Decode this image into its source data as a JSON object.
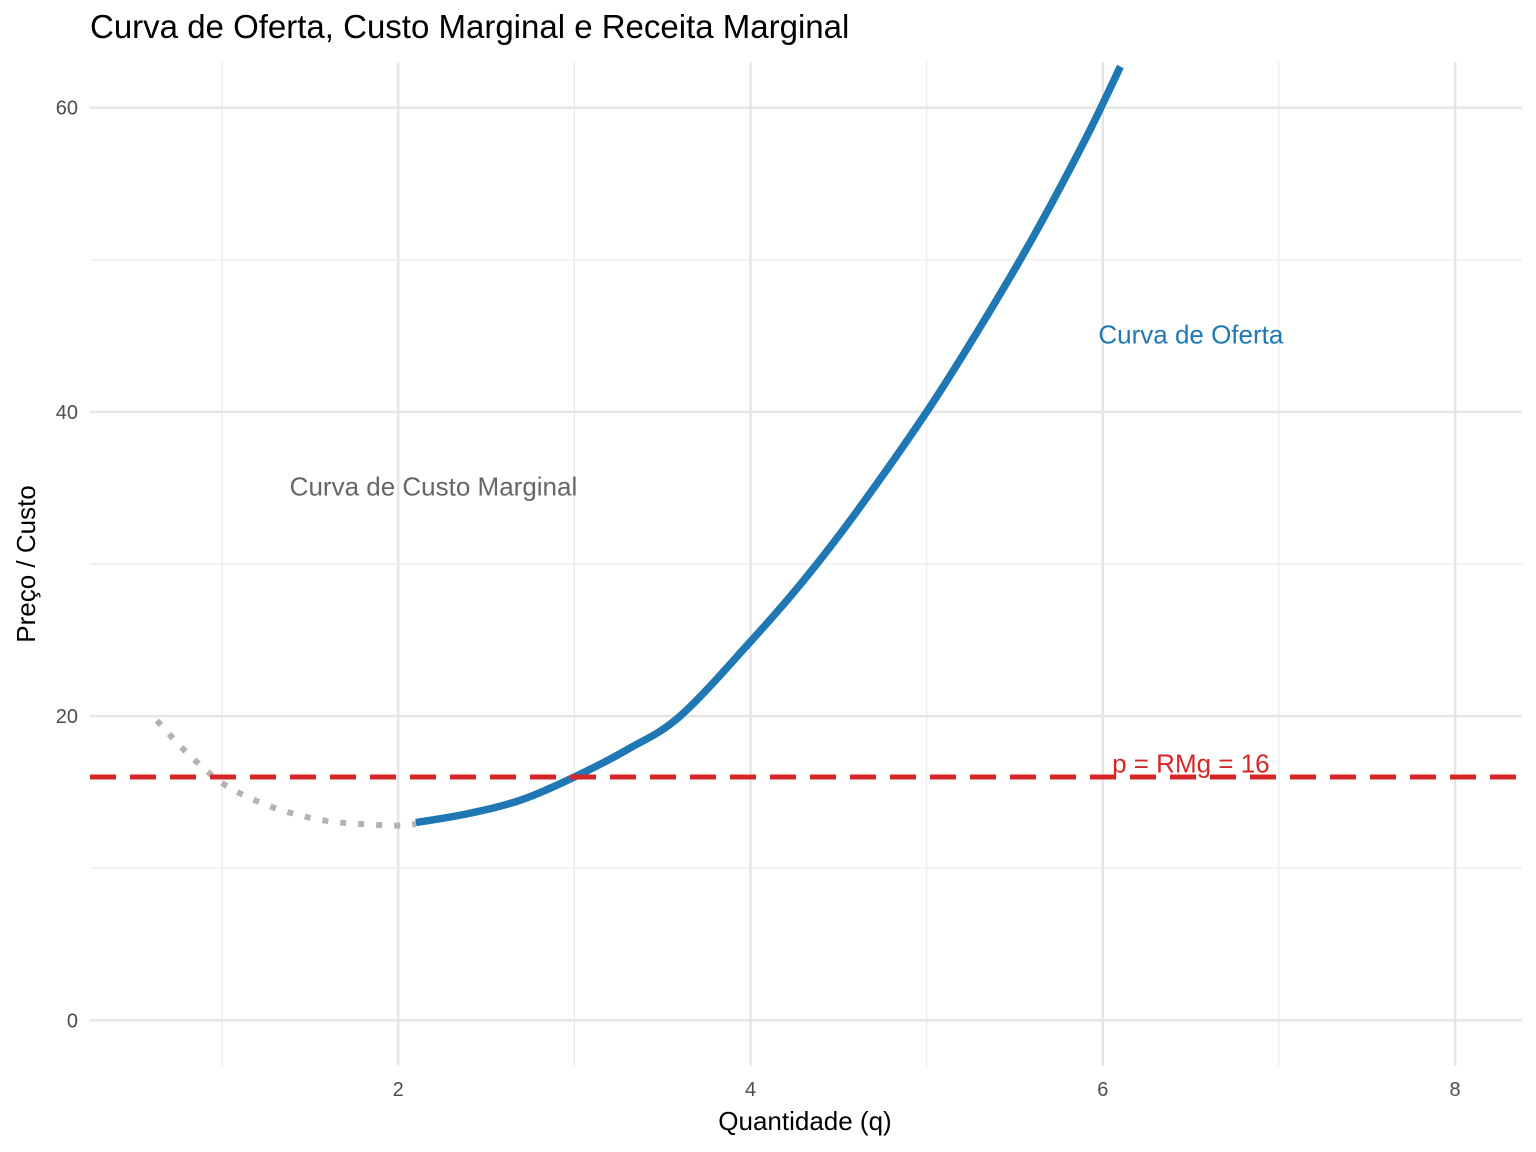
{
  "chart_data": {
    "type": "line",
    "title": "Curva de Oferta, Custo Marginal e Receita Marginal",
    "xlabel": "Quantidade (q)",
    "ylabel": "Preço / Custo",
    "xlim": [
      0.25,
      8.38
    ],
    "ylim": [
      -3.0,
      63.0
    ],
    "x_major_ticks": [
      2,
      4,
      6,
      8
    ],
    "x_minor_gridlines": [
      1,
      3,
      5,
      7
    ],
    "y_major_ticks": [
      0,
      20,
      40,
      60
    ],
    "y_minor_gridlines": [
      10,
      30,
      50
    ],
    "grid": true,
    "series": [
      {
        "key": "custo_marginal",
        "color": "#b3b3b3",
        "style": "dotted",
        "x": [
          0.63,
          0.8,
          1.0,
          1.2,
          1.4,
          1.6,
          1.8,
          2.0,
          2.1
        ],
        "y": [
          19.7,
          17.6,
          15.6,
          14.4,
          13.6,
          13.1,
          12.9,
          12.8,
          12.9
        ]
      },
      {
        "key": "oferta",
        "color": "#1f78b4",
        "style": "solid",
        "x": [
          2.1,
          2.4,
          2.7,
          3.0,
          3.3,
          3.6,
          4.0,
          4.3,
          4.6,
          5.0,
          5.3,
          5.6,
          5.9,
          6.1
        ],
        "y": [
          13.0,
          13.6,
          14.5,
          16.0,
          17.8,
          20.0,
          24.9,
          28.9,
          33.4,
          40.0,
          45.5,
          51.4,
          57.9,
          62.7
        ]
      },
      {
        "key": "receita_marginal",
        "color": "#d62728",
        "style": "dashed",
        "x": [
          0.25,
          8.38
        ],
        "y": [
          16,
          16
        ]
      }
    ],
    "annotations": [
      {
        "text": "Curva de Oferta",
        "x": 6.5,
        "y": 45.1,
        "color": "#1f78b4"
      },
      {
        "text": "Curva de Custo Marginal",
        "x": 2.2,
        "y": 35.1,
        "color": "#666666"
      },
      {
        "text": "p = RMg = 16",
        "x": 6.5,
        "y": 16.9,
        "color": "#d62728"
      }
    ]
  }
}
